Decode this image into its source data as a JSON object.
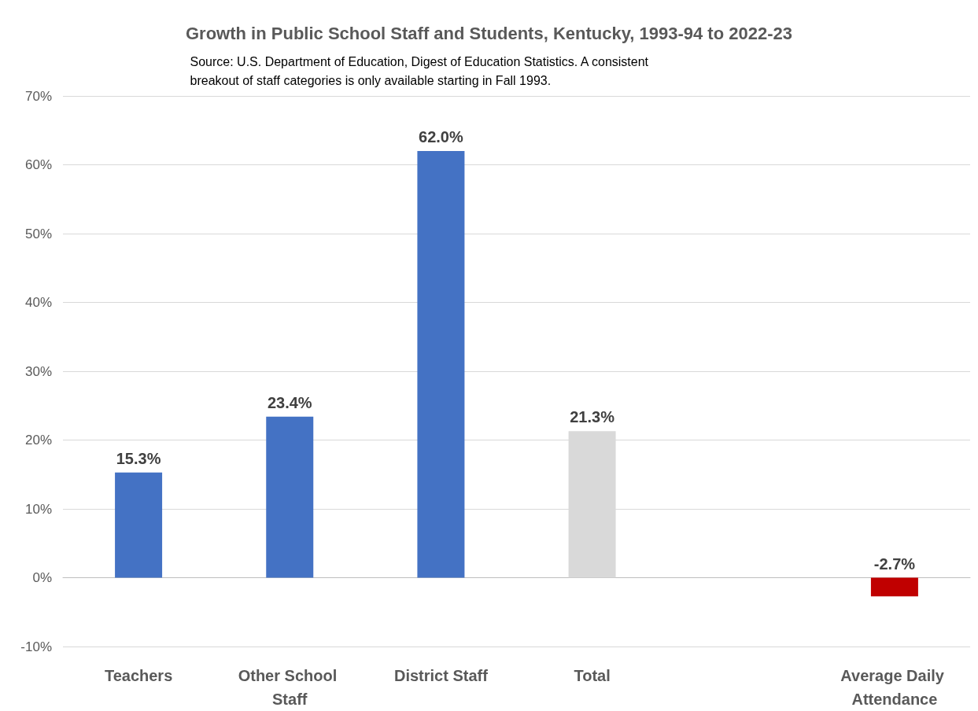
{
  "chart_data": {
    "type": "bar",
    "title": "Growth in Public School Staff and Students, Kentucky, 1993-94 to 2022-23",
    "annotations": [
      "Source: U.S. Department of Education, Digest of Education Statistics. A consistent breakout of staff categories is only available starting in Fall 1993."
    ],
    "categories": [
      "Teachers",
      "Other School Staff",
      "District Staff",
      "Total",
      null,
      "Average Daily Attendance"
    ],
    "values": [
      15.3,
      23.4,
      62.0,
      21.3,
      null,
      -2.7
    ],
    "colors": [
      "#4472c4",
      "#4472c4",
      "#4472c4",
      "#d9d9d9",
      null,
      "#c00000"
    ],
    "value_labels": [
      "15.3%",
      "23.4%",
      "62.0%",
      "21.3%",
      null,
      "-2.7%"
    ],
    "ylim": [
      -10,
      70
    ],
    "yticks": [
      {
        "value": -10,
        "label": "-10%"
      },
      {
        "value": 0,
        "label": "0%"
      },
      {
        "value": 10,
        "label": "10%"
      },
      {
        "value": 20,
        "label": "20%"
      },
      {
        "value": 30,
        "label": "30%"
      },
      {
        "value": 40,
        "label": "40%"
      },
      {
        "value": 50,
        "label": "50%"
      },
      {
        "value": 60,
        "label": "60%"
      },
      {
        "value": 70,
        "label": "70%"
      }
    ],
    "grid": "y"
  }
}
